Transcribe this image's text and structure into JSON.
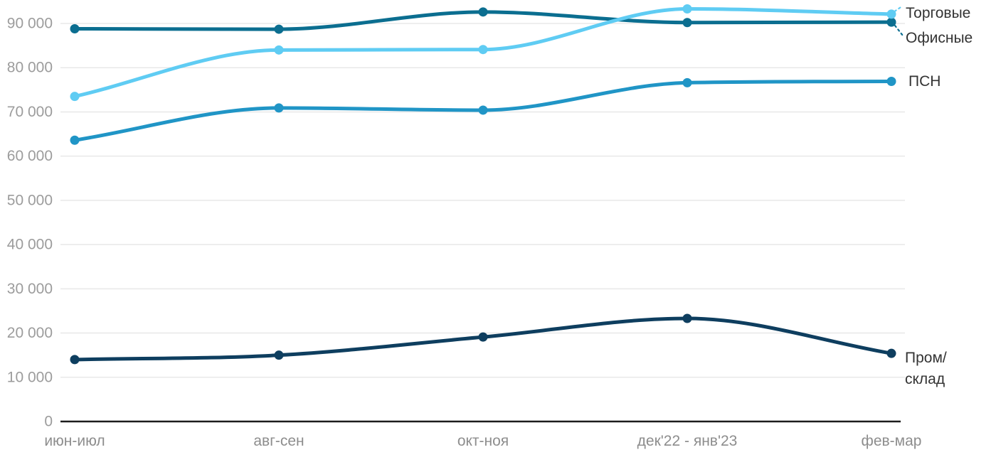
{
  "chart_data": {
    "type": "line",
    "title": "",
    "xlabel": "",
    "ylabel": "",
    "categories": [
      "июн-июл",
      "авг-сен",
      "окт-ноя",
      "дек'22 - янв'23",
      "фев-мар"
    ],
    "series": [
      {
        "name": "Пром/склад",
        "label_lines": [
          "Пром/",
          "склад"
        ],
        "color": "#0e3e5f",
        "values": [
          14000,
          15000,
          19100,
          23300,
          15400
        ]
      },
      {
        "name": "ПСН",
        "label_lines": [
          "ПСН"
        ],
        "color": "#2095c6",
        "values": [
          63600,
          70900,
          70400,
          76600,
          76900
        ]
      },
      {
        "name": "Офисные",
        "label_lines": [
          "Офисные"
        ],
        "color": "#0b6e90",
        "values": [
          88800,
          88700,
          92600,
          90200,
          90300
        ]
      },
      {
        "name": "Торговые",
        "label_lines": [
          "Торговые"
        ],
        "color": "#5fccf3",
        "values": [
          73500,
          84000,
          84100,
          93300,
          92100
        ]
      }
    ],
    "ylim": [
      0,
      90000
    ],
    "yticks": [
      0,
      10000,
      20000,
      30000,
      40000,
      50000,
      60000,
      70000,
      80000,
      90000
    ],
    "ytick_labels": [
      "0",
      "10 000",
      "20 000",
      "30 000",
      "40 000",
      "50 000",
      "60 000",
      "70 000",
      "80 000",
      "90 000"
    ],
    "grid": true,
    "legend_position": "right-end-of-line-labels",
    "leader_lines": [
      "Торговые",
      "Офисные"
    ]
  },
  "colors": {
    "background": "#ffffff",
    "grid": "#e8e8e8",
    "axis": "#1c1c1c",
    "y_tick_text": "#9c9c9c",
    "x_tick_text": "#8d8d8d",
    "series_label_text": "#333333"
  }
}
